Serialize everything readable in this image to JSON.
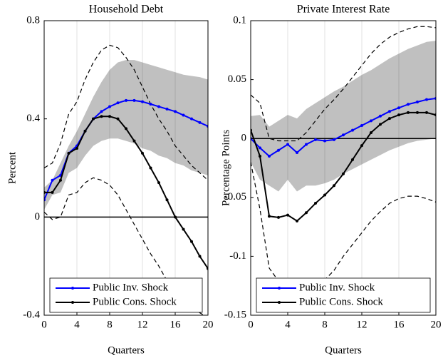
{
  "chart_data": [
    {
      "type": "line",
      "title": "Household Debt",
      "xlabel": "Quarters",
      "ylabel": "Percent",
      "x": [
        0,
        1,
        2,
        3,
        4,
        5,
        6,
        7,
        8,
        9,
        10,
        11,
        12,
        13,
        14,
        15,
        16,
        17,
        18,
        19,
        20
      ],
      "xlim": [
        0,
        20
      ],
      "xticks": [
        0,
        4,
        8,
        12,
        16,
        20
      ],
      "ylim": [
        -0.4,
        0.8
      ],
      "yticks": [
        -0.4,
        0,
        0.4,
        0.8
      ],
      "grid": "x",
      "hline": 0,
      "legend": "lower center",
      "band": {
        "color": "#c0c0c0",
        "upper": [
          0.12,
          0.15,
          0.22,
          0.29,
          0.35,
          0.42,
          0.49,
          0.55,
          0.6,
          0.63,
          0.64,
          0.64,
          0.63,
          0.62,
          0.61,
          0.6,
          0.59,
          0.58,
          0.575,
          0.57,
          0.56
        ],
        "lower": [
          0.03,
          0.09,
          0.1,
          0.18,
          0.2,
          0.25,
          0.29,
          0.31,
          0.32,
          0.32,
          0.31,
          0.3,
          0.28,
          0.27,
          0.25,
          0.24,
          0.22,
          0.21,
          0.19,
          0.18,
          0.17
        ]
      },
      "bounds": {
        "color": "#000000",
        "upper": [
          0.2,
          0.22,
          0.3,
          0.42,
          0.47,
          0.56,
          0.63,
          0.68,
          0.7,
          0.69,
          0.65,
          0.6,
          0.53,
          0.46,
          0.4,
          0.35,
          0.29,
          0.25,
          0.21,
          0.18,
          0.15
        ],
        "lower": [
          0.02,
          -0.01,
          0.0,
          0.09,
          0.1,
          0.14,
          0.16,
          0.15,
          0.13,
          0.09,
          0.03,
          -0.03,
          -0.09,
          -0.15,
          -0.2,
          -0.26,
          -0.31,
          -0.34,
          -0.37,
          -0.39,
          -0.41
        ]
      },
      "series": [
        {
          "name": "Public Inv. Shock",
          "color": "#0000ff",
          "values": [
            0.07,
            0.15,
            0.17,
            0.26,
            0.29,
            0.35,
            0.4,
            0.43,
            0.45,
            0.465,
            0.475,
            0.475,
            0.47,
            0.46,
            0.45,
            0.44,
            0.43,
            0.415,
            0.4,
            0.385,
            0.37
          ]
        },
        {
          "name": "Public Cons. Shock",
          "color": "#000000",
          "values": [
            0.1,
            0.1,
            0.15,
            0.26,
            0.28,
            0.35,
            0.4,
            0.41,
            0.41,
            0.4,
            0.36,
            0.31,
            0.26,
            0.2,
            0.14,
            0.07,
            0.0,
            -0.05,
            -0.1,
            -0.16,
            -0.21
          ]
        }
      ]
    },
    {
      "type": "line",
      "title": "Private Interest Rate",
      "xlabel": "Quarters",
      "ylabel": "Percentage Points",
      "x": [
        0,
        1,
        2,
        3,
        4,
        5,
        6,
        7,
        8,
        9,
        10,
        11,
        12,
        13,
        14,
        15,
        16,
        17,
        18,
        19,
        20
      ],
      "xlim": [
        0,
        20
      ],
      "xticks": [
        0,
        4,
        8,
        12,
        16,
        20
      ],
      "ylim": [
        -0.15,
        0.1
      ],
      "yticks": [
        -0.15,
        -0.1,
        -0.05,
        0,
        0.05,
        0.1
      ],
      "grid": "x",
      "hline": 0,
      "legend": "lower center",
      "band": {
        "color": "#c0c0c0",
        "upper": [
          0.019,
          0.02,
          0.01,
          0.015,
          0.02,
          0.017,
          0.025,
          0.03,
          0.035,
          0.04,
          0.044,
          0.049,
          0.054,
          0.058,
          0.063,
          0.068,
          0.072,
          0.076,
          0.079,
          0.082,
          0.083
        ],
        "lower": [
          -0.02,
          -0.035,
          -0.04,
          -0.045,
          -0.035,
          -0.045,
          -0.04,
          -0.04,
          -0.038,
          -0.035,
          -0.03,
          -0.026,
          -0.022,
          -0.018,
          -0.014,
          -0.01,
          -0.007,
          -0.004,
          -0.002,
          -0.001,
          0.0
        ]
      },
      "bounds": {
        "color": "#000000",
        "upper": [
          0.037,
          0.03,
          0.0,
          -0.002,
          -0.002,
          -0.002,
          0.005,
          0.015,
          0.025,
          0.033,
          0.042,
          0.052,
          0.062,
          0.072,
          0.08,
          0.086,
          0.09,
          0.093,
          0.095,
          0.095,
          0.094
        ],
        "lower": [
          -0.02,
          -0.06,
          -0.11,
          -0.121,
          -0.124,
          -0.126,
          -0.126,
          -0.124,
          -0.12,
          -0.112,
          -0.1,
          -0.09,
          -0.08,
          -0.07,
          -0.062,
          -0.055,
          -0.051,
          -0.049,
          -0.049,
          -0.051,
          -0.054
        ]
      },
      "series": [
        {
          "name": "Public Inv. Shock",
          "color": "#0000ff",
          "values": [
            0.0,
            -0.008,
            -0.015,
            -0.01,
            -0.005,
            -0.012,
            -0.005,
            -0.001,
            -0.002,
            -0.001,
            0.003,
            0.007,
            0.011,
            0.015,
            0.019,
            0.023,
            0.026,
            0.029,
            0.031,
            0.033,
            0.034
          ]
        },
        {
          "name": "Public Cons. Shock",
          "color": "#000000",
          "values": [
            0.007,
            -0.015,
            -0.066,
            -0.067,
            -0.065,
            -0.07,
            -0.063,
            -0.055,
            -0.048,
            -0.04,
            -0.03,
            -0.018,
            -0.006,
            0.005,
            0.012,
            0.017,
            0.02,
            0.022,
            0.022,
            0.022,
            0.02
          ]
        }
      ]
    }
  ]
}
